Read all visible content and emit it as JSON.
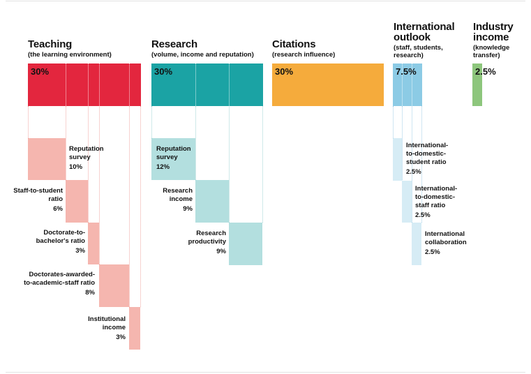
{
  "colors": {
    "teaching": "#e3263e",
    "teaching_light": "#f5b6af",
    "research": "#1ba3a4",
    "research_light": "#b3dfdf",
    "citations": "#f5ab3c",
    "international": "#8ccbe5",
    "international_light": "#d6ecf5",
    "industry": "#8dc67c"
  },
  "categories": [
    {
      "id": "teaching",
      "title": "Teaching",
      "subtitle": "(the learning environment)",
      "weight": "30%",
      "weight_pct": 30
    },
    {
      "id": "research",
      "title": "Research",
      "subtitle": "(volume, income and reputation)",
      "weight": "30%",
      "weight_pct": 30
    },
    {
      "id": "citations",
      "title": "Citations",
      "subtitle": "(research influence)",
      "weight": "30%",
      "weight_pct": 30
    },
    {
      "id": "international",
      "title": "International outlook",
      "subtitle": "(staff, students, research)",
      "weight": "7.5%",
      "weight_pct": 7.5
    },
    {
      "id": "industry",
      "title": "Industry income",
      "subtitle": "(knowledge transfer)",
      "weight": "2.5%",
      "weight_pct": 2.5
    }
  ],
  "teaching_sub": [
    {
      "label": "Reputation survey",
      "pct": "10%",
      "value": 10
    },
    {
      "label": "Staff-to-student ratio",
      "pct": "6%",
      "value": 6
    },
    {
      "label": "Doctorate-to-bachelor's ratio",
      "pct": "3%",
      "value": 3
    },
    {
      "label": "Doctorates-awarded-to-academic-staff ratio",
      "pct": "8%",
      "value": 8
    },
    {
      "label": "Institutional income",
      "pct": "3%",
      "value": 3
    }
  ],
  "research_sub": [
    {
      "label": "Reputation survey",
      "pct": "12%",
      "value": 12
    },
    {
      "label": "Research income",
      "pct": "9%",
      "value": 9
    },
    {
      "label": "Research productivity",
      "pct": "9%",
      "value": 9
    }
  ],
  "international_sub": [
    {
      "label": "International-to-domestic-student ratio",
      "pct": "2.5%",
      "value": 2.5
    },
    {
      "label": "International-to-domestic-staff ratio",
      "pct": "2.5%",
      "value": 2.5
    },
    {
      "label": "International collaboration",
      "pct": "2.5%",
      "value": 2.5
    }
  ]
}
